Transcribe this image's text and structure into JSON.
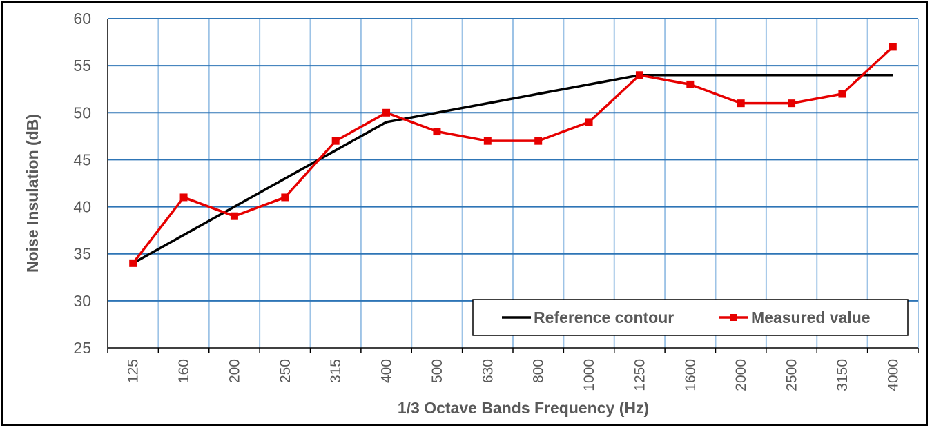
{
  "chart_data": {
    "type": "line",
    "categories": [
      "125",
      "160",
      "200",
      "250",
      "315",
      "400",
      "500",
      "630",
      "800",
      "1000",
      "1250",
      "1600",
      "2000",
      "2500",
      "3150",
      "4000"
    ],
    "series": [
      {
        "name": "Reference contour",
        "color": "#000000",
        "marker": "none",
        "values": [
          34,
          37,
          40,
          43,
          46,
          49,
          50,
          51,
          52,
          53,
          54,
          54,
          54,
          54,
          54,
          54
        ]
      },
      {
        "name": "Measured value",
        "color": "#e60000",
        "marker": "square",
        "values": [
          34,
          41,
          39,
          41,
          47,
          50,
          48,
          47,
          47,
          49,
          54,
          53,
          51,
          51,
          52,
          57
        ]
      }
    ],
    "xlabel": "1/3 Octave Bands Frequency (Hz)",
    "ylabel": "Noise Insulation (dB)",
    "ylim": [
      25,
      60
    ],
    "yticks": [
      25,
      30,
      35,
      40,
      45,
      50,
      55,
      60
    ],
    "grid": true,
    "grid_colors": {
      "horizontal": "#2e75b6",
      "vertical": "#9dc3e6"
    },
    "legend_position": "bottom-right"
  }
}
